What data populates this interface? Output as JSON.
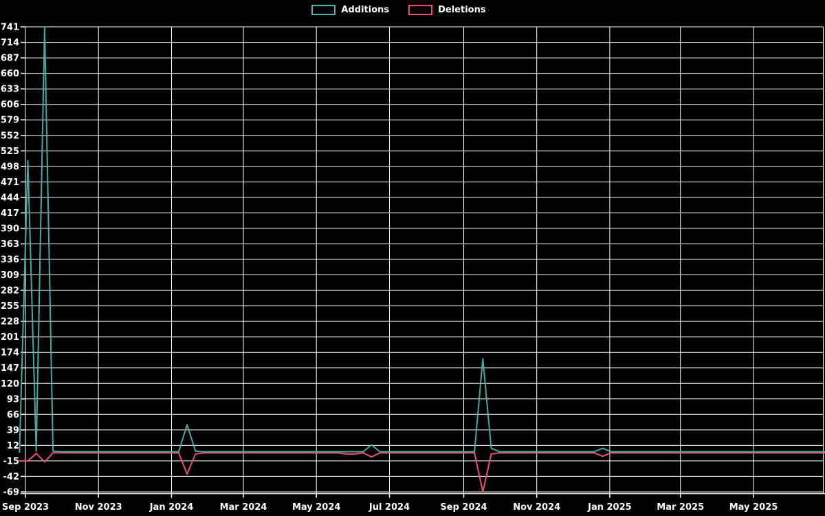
{
  "chart_data": {
    "type": "line",
    "title": "",
    "background": "#000000",
    "grid": true,
    "legend_position": "top-center",
    "y_axis": {
      "min": -69,
      "max": 741,
      "step": 27,
      "tick_values": [
        -69,
        -42,
        -15,
        12,
        39,
        66,
        93,
        120,
        147,
        174,
        201,
        228,
        255,
        282,
        309,
        336,
        363,
        390,
        417,
        444,
        471,
        498,
        525,
        552,
        579,
        606,
        633,
        660,
        687,
        714,
        741
      ]
    },
    "x_axis": {
      "tick_labels": [
        "Sep 2023",
        "Nov 2023",
        "Jan 2024",
        "Mar 2024",
        "May 2024",
        "Jul 2024",
        "Sep 2024",
        "Nov 2024",
        "Jan 2025",
        "Mar 2025",
        "May 2025"
      ]
    },
    "series": [
      {
        "name": "Additions",
        "color": "#46b8b0"
      },
      {
        "name": "Deletions",
        "color": "#ee4d74"
      }
    ],
    "weeks": [
      {
        "date": "2023-08-27",
        "additions": 0,
        "deletions": -15
      },
      {
        "date": "2023-09-03",
        "additions": 508,
        "deletions": -15
      },
      {
        "date": "2023-09-10",
        "additions": 2,
        "deletions": -2
      },
      {
        "date": "2023-09-17",
        "additions": 741,
        "deletions": -17
      },
      {
        "date": "2023-09-24",
        "additions": 2,
        "deletions": -1
      },
      {
        "date": "2023-10-01",
        "additions": 1,
        "deletions": -1
      },
      {
        "date": "2024-01-07",
        "additions": 1,
        "deletions": -1
      },
      {
        "date": "2024-01-14",
        "additions": 48,
        "deletions": -38
      },
      {
        "date": "2024-01-21",
        "additions": 2,
        "deletions": -3
      },
      {
        "date": "2024-01-28",
        "additions": 1,
        "deletions": -1
      },
      {
        "date": "2024-05-19",
        "additions": 1,
        "deletions": -1
      },
      {
        "date": "2024-05-26",
        "additions": 1,
        "deletions": -3
      },
      {
        "date": "2024-06-02",
        "additions": 1,
        "deletions": -3
      },
      {
        "date": "2024-06-09",
        "additions": 1,
        "deletions": -1
      },
      {
        "date": "2024-06-16",
        "additions": 13,
        "deletions": -8
      },
      {
        "date": "2024-06-23",
        "additions": 1,
        "deletions": -1
      },
      {
        "date": "2024-09-10",
        "additions": 1,
        "deletions": -1
      },
      {
        "date": "2024-09-17",
        "additions": 163,
        "deletions": -69
      },
      {
        "date": "2024-09-24",
        "additions": 7,
        "deletions": -3
      },
      {
        "date": "2024-10-01",
        "additions": 1,
        "deletions": -1
      },
      {
        "date": "2024-12-19",
        "additions": 1,
        "deletions": -1
      },
      {
        "date": "2024-12-26",
        "additions": 7,
        "deletions": -7
      },
      {
        "date": "2025-01-02",
        "additions": 1,
        "deletions": -1
      },
      {
        "date": "2025-07-06",
        "additions": 1,
        "deletions": -1
      }
    ]
  }
}
